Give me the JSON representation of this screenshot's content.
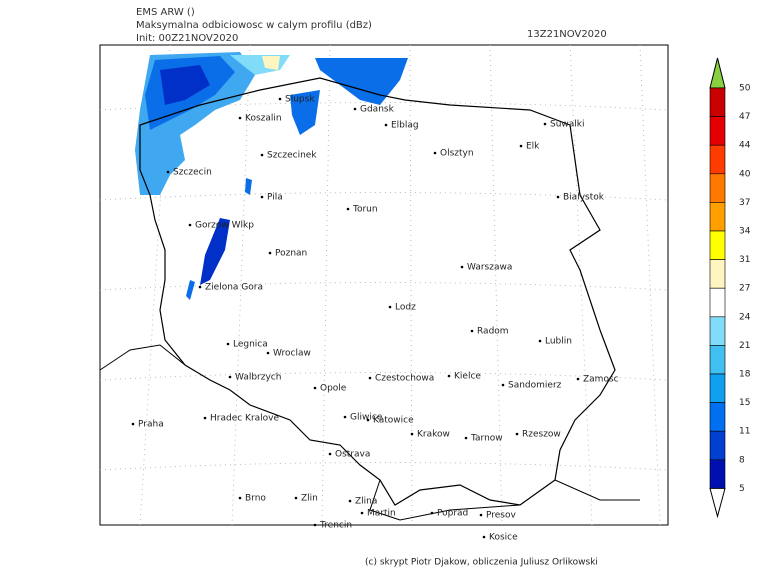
{
  "header": {
    "model": "EMS ARW ()",
    "field": "Maksymalna odbiciowosc w calym profilu (dBz)",
    "init": "Init: 00Z21NOV2020",
    "valid": "13Z21NOV2020"
  },
  "cities": [
    "Slupsk",
    "Koszalin",
    "Gdansk",
    "Elblag",
    "Suwalki",
    "Elk",
    "Olsztyn",
    "Szczecinek",
    "Szczecin",
    "Bialystok",
    "Pila",
    "Torun",
    "Gorzow Wlkp",
    "Poznan",
    "Warszawa",
    "Zielona Gora",
    "Lodz",
    "Radom",
    "Lublin",
    "Legnica",
    "Wroclaw",
    "Walbrzych",
    "Opole",
    "Czestochowa",
    "Kielce",
    "Sandomierz",
    "Zamosc",
    "Praha",
    "Hradec Kralove",
    "Gliwice",
    "Katowice",
    "Krakow",
    "Tarnow",
    "Rzeszow",
    "Ostrava",
    "Brno",
    "Zlin",
    "Zlina",
    "Martin",
    "Poprad",
    "Presov",
    "Trencin",
    "Kosice"
  ],
  "colorbar": {
    "levels": [
      50,
      47,
      44,
      40,
      37,
      34,
      31,
      27,
      24,
      21,
      18,
      15,
      11,
      8,
      5
    ],
    "colors": [
      "#c80000",
      "#e40000",
      "#ff3c00",
      "#ff7800",
      "#ffa000",
      "#ffff00",
      "#fff5c0",
      "#ffffff",
      "#80dcf8",
      "#40c0f0",
      "#10a0f0",
      "#0070f0",
      "#0040d0",
      "#0010b0"
    ],
    "top_color": "#88d040",
    "bottom_color": "#ffffff"
  },
  "footer": "(c) skrypt Piotr Djakow, obliczenia Juliusz Orlikowski"
}
